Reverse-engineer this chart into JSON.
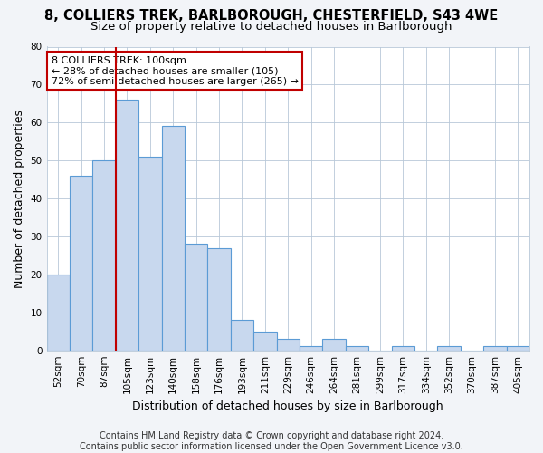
{
  "title1": "8, COLLIERS TREK, BARLBOROUGH, CHESTERFIELD, S43 4WE",
  "title2": "Size of property relative to detached houses in Barlborough",
  "xlabel": "Distribution of detached houses by size in Barlborough",
  "ylabel": "Number of detached properties",
  "categories": [
    "52sqm",
    "70sqm",
    "87sqm",
    "105sqm",
    "123sqm",
    "140sqm",
    "158sqm",
    "176sqm",
    "193sqm",
    "211sqm",
    "229sqm",
    "246sqm",
    "264sqm",
    "281sqm",
    "299sqm",
    "317sqm",
    "334sqm",
    "352sqm",
    "370sqm",
    "387sqm",
    "405sqm"
  ],
  "values": [
    20,
    46,
    50,
    66,
    51,
    59,
    28,
    27,
    8,
    5,
    3,
    1,
    3,
    1,
    0,
    1,
    0,
    1,
    0,
    1,
    1
  ],
  "bar_color": "#c8d8ee",
  "bar_edge_color": "#5b9bd5",
  "highlight_index": 3,
  "highlight_line_color": "#c00000",
  "annotation_line1": "8 COLLIERS TREK: 100sqm",
  "annotation_line2": "← 28% of detached houses are smaller (105)",
  "annotation_line3": "72% of semi-detached houses are larger (265) →",
  "annotation_box_color": "#ffffff",
  "annotation_box_edge": "#c00000",
  "ylim": [
    0,
    80
  ],
  "yticks": [
    0,
    10,
    20,
    30,
    40,
    50,
    60,
    70,
    80
  ],
  "footer": "Contains HM Land Registry data © Crown copyright and database right 2024.\nContains public sector information licensed under the Open Government Licence v3.0.",
  "bg_color": "#f2f4f8",
  "plot_bg_color": "#ffffff",
  "title_fontsize": 10.5,
  "subtitle_fontsize": 9.5,
  "label_fontsize": 9,
  "tick_fontsize": 7.5,
  "footer_fontsize": 7,
  "annotation_fontsize": 8
}
